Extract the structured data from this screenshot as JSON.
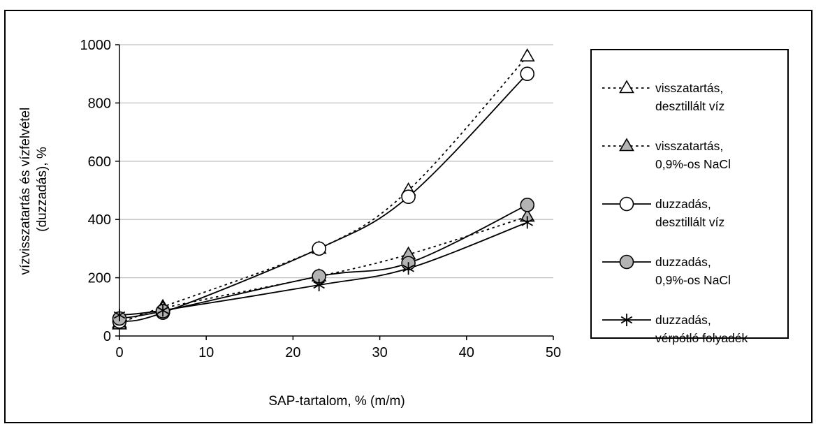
{
  "chart_data": {
    "type": "line",
    "title": "",
    "xlabel": "SAP-tartalom, % (m/m)",
    "ylabel_lines": [
      "vízvisszatartás és vízfelvétel",
      "(duzzadás), %"
    ],
    "xlim": [
      0,
      50
    ],
    "ylim": [
      0,
      1000
    ],
    "x_ticks": [
      0,
      10,
      20,
      30,
      40,
      50
    ],
    "y_ticks": [
      0,
      200,
      400,
      600,
      800,
      1000
    ],
    "grid": "horizontal",
    "legend_position": "right",
    "series": [
      {
        "name_lines": [
          "visszatartás,",
          "desztillált víz"
        ],
        "marker": "triangle",
        "fill": "#ffffff",
        "line": "dotted",
        "x": [
          0,
          5,
          23,
          33.3,
          47
        ],
        "y": [
          45,
          100,
          300,
          500,
          960
        ]
      },
      {
        "name_lines": [
          "visszatartás,",
          "0,9%-os NaCl"
        ],
        "marker": "triangle",
        "fill": "#b3b3b3",
        "line": "dotted",
        "x": [
          0,
          5,
          23,
          33.3,
          47
        ],
        "y": [
          40,
          95,
          205,
          280,
          410
        ]
      },
      {
        "name_lines": [
          "duzzadás,",
          "desztillált víz"
        ],
        "marker": "circle",
        "fill": "#ffffff",
        "line": "solid",
        "x": [
          0,
          5,
          23,
          33.3,
          47
        ],
        "y": [
          50,
          80,
          300,
          478,
          900
        ]
      },
      {
        "name_lines": [
          "duzzadás,",
          "0,9%-os NaCl"
        ],
        "marker": "circle",
        "fill": "#b3b3b3",
        "line": "solid",
        "x": [
          0,
          5,
          23,
          33.3,
          47
        ],
        "y": [
          60,
          85,
          205,
          250,
          450
        ]
      },
      {
        "name_lines": [
          "duzzadás,",
          "vérpótló folyadék"
        ],
        "marker": "asterisk",
        "fill": "none",
        "line": "solid",
        "x": [
          0,
          5,
          23,
          33.3,
          47
        ],
        "y": [
          72,
          88,
          175,
          232,
          390
        ]
      }
    ]
  }
}
